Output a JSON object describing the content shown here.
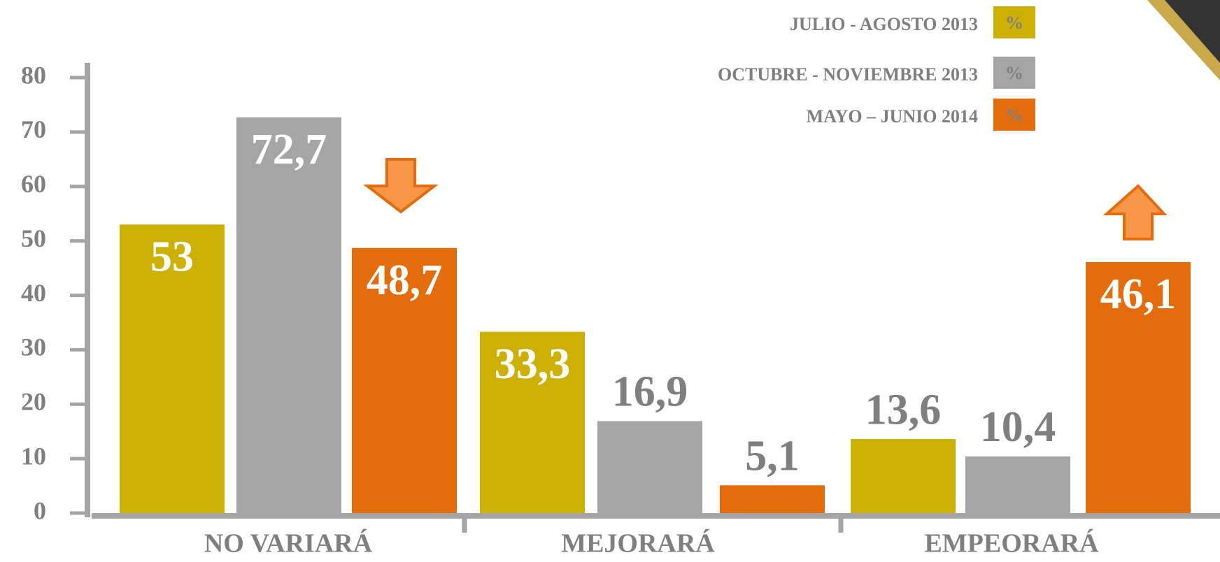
{
  "chart_data": {
    "type": "bar",
    "categories": [
      "NO VARIARÁ",
      "MEJORARÁ",
      "EMPEORARÁ"
    ],
    "series": [
      {
        "name": "JULIO - AGOSTO 2013",
        "color": "#cdb004",
        "values": [
          53,
          33.3,
          13.6
        ],
        "value_labels": [
          "53",
          "33,3",
          "13,6"
        ]
      },
      {
        "name": "OCTUBRE - NOVIEMBRE 2013",
        "color": "#a5a5a5",
        "values": [
          72.7,
          16.9,
          10.4
        ],
        "value_labels": [
          "72,7",
          "16,9",
          "10,4"
        ]
      },
      {
        "name": "MAYO – JUNIO 2014",
        "color": "#e46c0a",
        "values": [
          48.7,
          5.1,
          46.1
        ],
        "value_labels": [
          "48,7",
          "5,1",
          "46,1"
        ]
      }
    ],
    "legend_symbol": "%",
    "ylim": [
      0,
      80
    ],
    "yticks": [
      0,
      10,
      20,
      30,
      40,
      50,
      60,
      70,
      80
    ],
    "legend": "top-right"
  }
}
